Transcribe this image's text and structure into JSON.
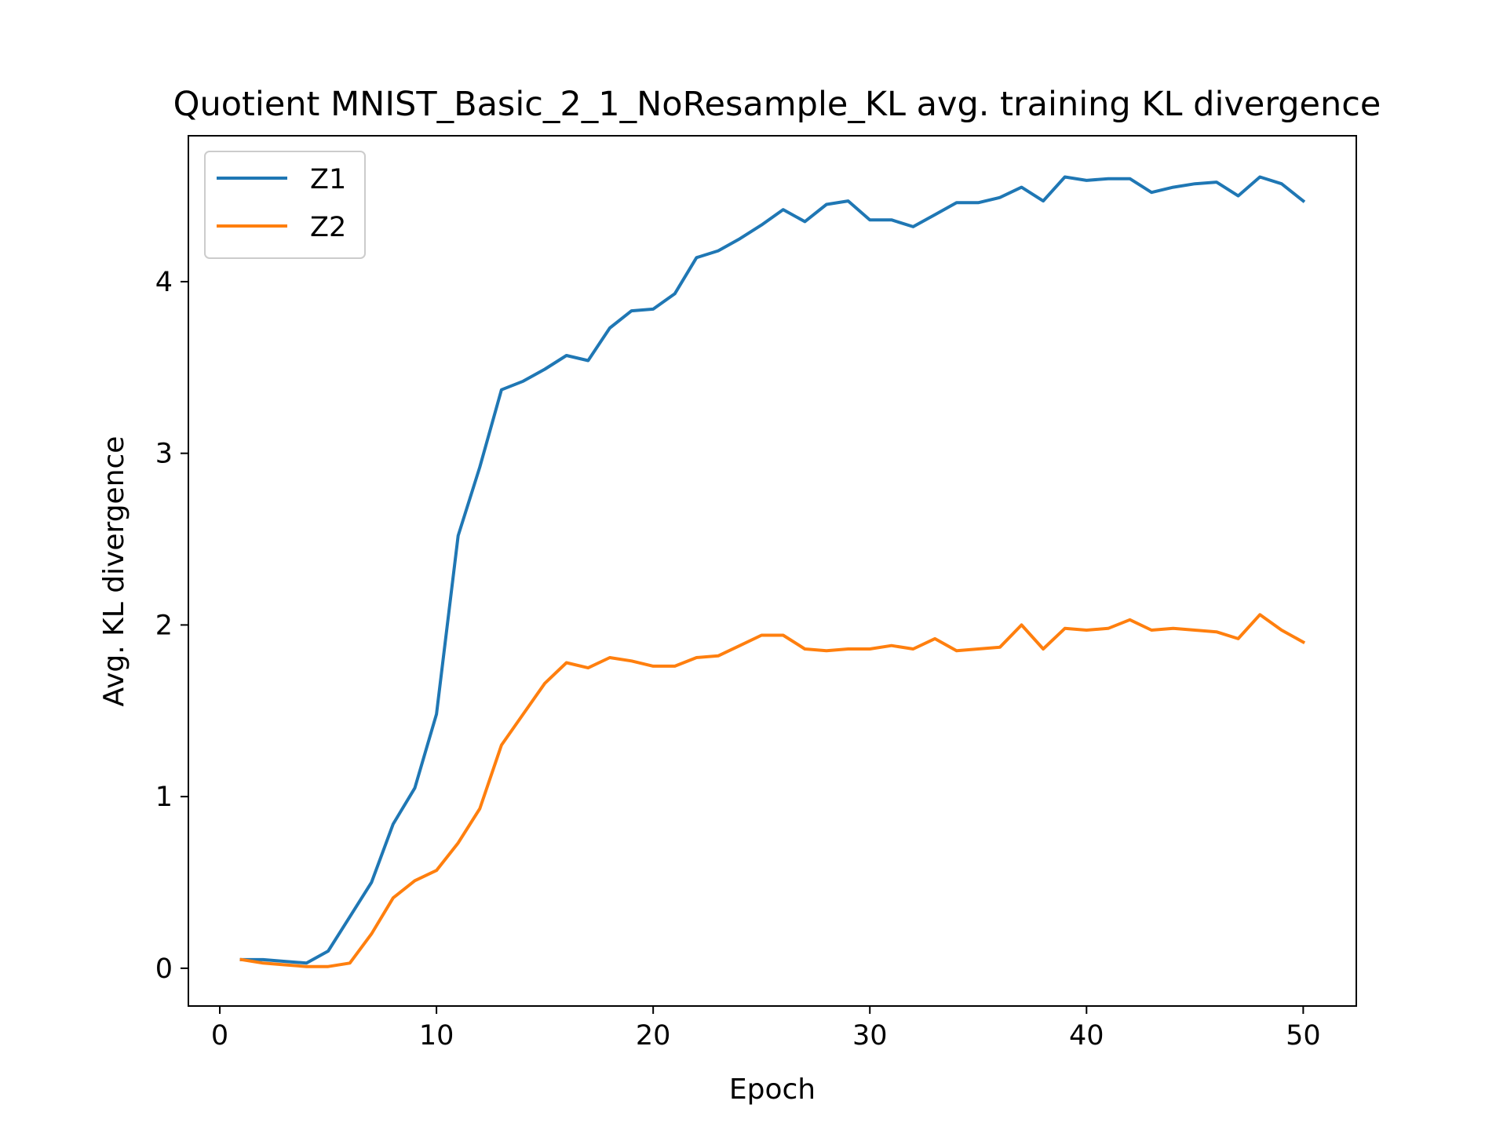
{
  "chart_data": {
    "type": "line",
    "title": "Quotient MNIST_Basic_2_1_NoResample_KL avg. training KL divergence",
    "xlabel": "Epoch",
    "ylabel": "Avg. KL divergence",
    "xlim": [
      -1.45,
      52.45
    ],
    "ylim": [
      -0.22,
      4.85
    ],
    "xticks": [
      0,
      10,
      20,
      30,
      40,
      50
    ],
    "yticks": [
      0,
      1,
      2,
      3,
      4
    ],
    "grid": false,
    "legend": "top-left",
    "x": [
      1,
      2,
      3,
      4,
      5,
      6,
      7,
      8,
      9,
      10,
      11,
      12,
      13,
      14,
      15,
      16,
      17,
      18,
      19,
      20,
      21,
      22,
      23,
      24,
      25,
      26,
      27,
      28,
      29,
      30,
      31,
      32,
      33,
      34,
      35,
      36,
      37,
      38,
      39,
      40,
      41,
      42,
      43,
      44,
      45,
      46,
      47,
      48,
      49,
      50
    ],
    "series": [
      {
        "name": "Z1",
        "color": "#1f77b4",
        "values": [
          0.05,
          0.05,
          0.04,
          0.03,
          0.1,
          0.3,
          0.5,
          0.84,
          1.05,
          1.48,
          2.52,
          2.92,
          3.37,
          3.42,
          3.49,
          3.57,
          3.54,
          3.73,
          3.83,
          3.84,
          3.93,
          4.14,
          4.18,
          4.25,
          4.33,
          4.42,
          4.35,
          4.45,
          4.47,
          4.36,
          4.36,
          4.32,
          4.39,
          4.46,
          4.46,
          4.49,
          4.55,
          4.47,
          4.61,
          4.59,
          4.6,
          4.6,
          4.52,
          4.55,
          4.57,
          4.58,
          4.5,
          4.61,
          4.57,
          4.47
        ]
      },
      {
        "name": "Z2",
        "color": "#ff7f0e",
        "values": [
          0.05,
          0.03,
          0.02,
          0.01,
          0.01,
          0.03,
          0.2,
          0.41,
          0.51,
          0.57,
          0.73,
          0.93,
          1.3,
          1.48,
          1.66,
          1.78,
          1.75,
          1.81,
          1.79,
          1.76,
          1.76,
          1.81,
          1.82,
          1.88,
          1.94,
          1.94,
          1.86,
          1.85,
          1.86,
          1.86,
          1.88,
          1.86,
          1.92,
          1.85,
          1.86,
          1.87,
          2.0,
          1.86,
          1.98,
          1.97,
          1.98,
          2.03,
          1.97,
          1.98,
          1.97,
          1.96,
          1.92,
          2.06,
          1.97,
          1.9
        ]
      }
    ]
  }
}
